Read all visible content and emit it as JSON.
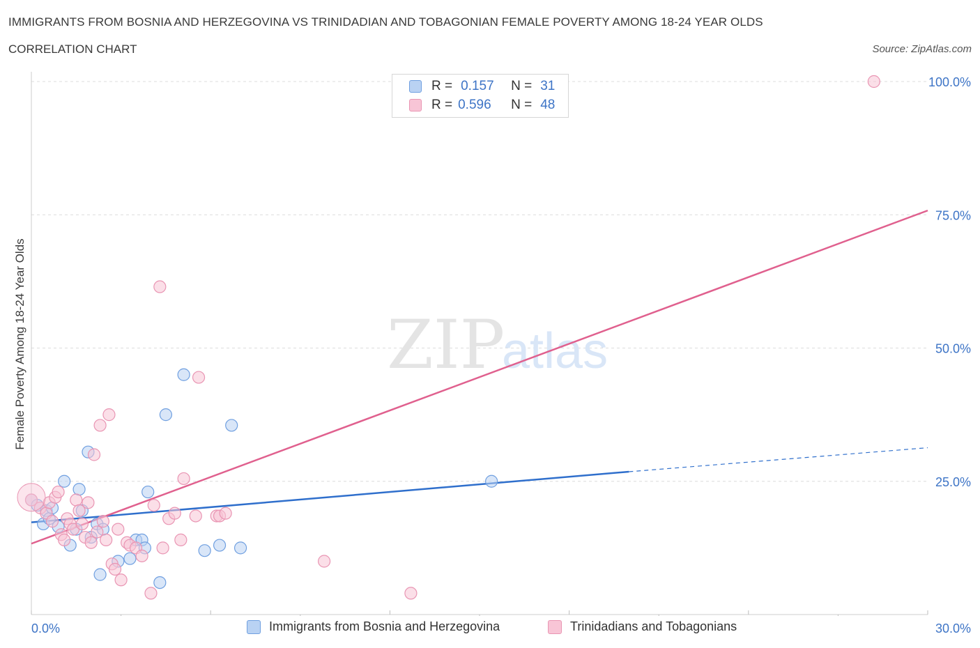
{
  "header": {
    "title": "IMMIGRANTS FROM BOSNIA AND HERZEGOVINA VS TRINIDADIAN AND TOBAGONIAN FEMALE POVERTY AMONG 18-24 YEAR OLDS",
    "subtitle": "CORRELATION CHART",
    "source": "Source: ZipAtlas.com"
  },
  "watermark": {
    "zip": "ZIP",
    "atlas": "atlas"
  },
  "legend": {
    "rows": [
      {
        "r_label": "R =",
        "r_value": "0.157",
        "n_label": "N =",
        "n_value": "31"
      },
      {
        "r_label": "R =",
        "r_value": "0.596",
        "n_label": "N =",
        "n_value": "48"
      }
    ]
  },
  "colors": {
    "blue_fill": "#b9d2f3",
    "blue_stroke": "#6f9fe0",
    "blue_line": "#2f6fcc",
    "pink_fill": "#f8c5d6",
    "pink_stroke": "#e995b3",
    "pink_line": "#e0608e",
    "axis_text": "#3d74c6",
    "grid": "#dcdcdc"
  },
  "chart_data": {
    "type": "scatter",
    "title": "IMMIGRANTS FROM BOSNIA AND HERZEGOVINA VS TRINIDADIAN AND TOBAGONIAN FEMALE POVERTY AMONG 18-24 YEAR OLDS",
    "xlabel": "",
    "ylabel": "Female Poverty Among 18-24 Year Olds",
    "xlim": [
      0,
      30
    ],
    "ylim": [
      0,
      100
    ],
    "x_tick_labels": [
      "0.0%",
      "30.0%"
    ],
    "y_tick_values": [
      25,
      50,
      75,
      100
    ],
    "y_tick_labels": [
      "25.0%",
      "50.0%",
      "75.0%",
      "100.0%"
    ],
    "grid": true,
    "legend_position": "top-center",
    "series": [
      {
        "name": "Immigrants from Bosnia and Herzegovina",
        "color": "#6f9fe0",
        "r": 0.157,
        "n": 31,
        "points": [
          [
            0.0,
            21.5
          ],
          [
            0.2,
            20.5
          ],
          [
            0.4,
            17.0
          ],
          [
            0.5,
            19.5
          ],
          [
            0.6,
            18.0
          ],
          [
            0.7,
            20.0
          ],
          [
            0.9,
            16.5
          ],
          [
            1.1,
            25.0
          ],
          [
            1.3,
            13.0
          ],
          [
            1.5,
            16.0
          ],
          [
            1.6,
            23.5
          ],
          [
            1.7,
            19.5
          ],
          [
            1.9,
            30.5
          ],
          [
            2.0,
            14.5
          ],
          [
            2.2,
            17.0
          ],
          [
            2.3,
            7.5
          ],
          [
            2.4,
            16.0
          ],
          [
            2.9,
            10.0
          ],
          [
            3.3,
            10.5
          ],
          [
            3.5,
            14.0
          ],
          [
            3.7,
            14.0
          ],
          [
            3.8,
            12.5
          ],
          [
            3.9,
            23.0
          ],
          [
            4.3,
            6.0
          ],
          [
            4.5,
            37.5
          ],
          [
            5.1,
            45.0
          ],
          [
            5.8,
            12.0
          ],
          [
            6.3,
            13.0
          ],
          [
            6.7,
            35.5
          ],
          [
            7.0,
            12.5
          ],
          [
            15.4,
            25.0
          ]
        ]
      },
      {
        "name": "Trinidadians and Tobagonians",
        "color": "#e995b3",
        "r": 0.596,
        "n": 48,
        "points": [
          [
            0.0,
            21.5
          ],
          [
            0.3,
            20.0
          ],
          [
            0.5,
            19.0
          ],
          [
            0.6,
            21.0
          ],
          [
            0.7,
            17.5
          ],
          [
            0.8,
            22.0
          ],
          [
            0.9,
            23.0
          ],
          [
            1.0,
            15.0
          ],
          [
            1.1,
            14.0
          ],
          [
            1.2,
            18.0
          ],
          [
            1.3,
            17.0
          ],
          [
            1.4,
            16.0
          ],
          [
            1.5,
            21.5
          ],
          [
            1.6,
            19.5
          ],
          [
            1.7,
            17.0
          ],
          [
            1.8,
            14.5
          ],
          [
            1.9,
            21.0
          ],
          [
            2.0,
            13.5
          ],
          [
            2.1,
            30.0
          ],
          [
            2.2,
            15.5
          ],
          [
            2.3,
            35.5
          ],
          [
            2.4,
            17.5
          ],
          [
            2.5,
            14.0
          ],
          [
            2.6,
            37.5
          ],
          [
            2.7,
            9.5
          ],
          [
            2.8,
            8.5
          ],
          [
            2.9,
            16.0
          ],
          [
            3.0,
            6.5
          ],
          [
            3.2,
            13.5
          ],
          [
            3.3,
            13.0
          ],
          [
            3.5,
            12.5
          ],
          [
            3.7,
            11.0
          ],
          [
            4.0,
            4.0
          ],
          [
            4.1,
            20.5
          ],
          [
            4.3,
            61.5
          ],
          [
            4.4,
            12.5
          ],
          [
            4.6,
            18.0
          ],
          [
            4.8,
            19.0
          ],
          [
            5.0,
            14.0
          ],
          [
            5.1,
            25.5
          ],
          [
            5.5,
            18.5
          ],
          [
            5.6,
            44.5
          ],
          [
            6.2,
            18.5
          ],
          [
            6.3,
            18.5
          ],
          [
            6.5,
            19.0
          ],
          [
            9.8,
            10.0
          ],
          [
            12.7,
            4.0
          ],
          [
            28.2,
            100.0
          ]
        ]
      }
    ],
    "trendlines": [
      {
        "series": "Immigrants from Bosnia and Herzegovina",
        "solid_from": [
          0,
          17.3
        ],
        "solid_to": [
          20,
          26.8
        ],
        "dashed_to": [
          30,
          31.3
        ]
      },
      {
        "series": "Trinidadians and Tobagonians",
        "from": [
          0,
          13.3
        ],
        "to": [
          30,
          75.8
        ]
      }
    ]
  }
}
